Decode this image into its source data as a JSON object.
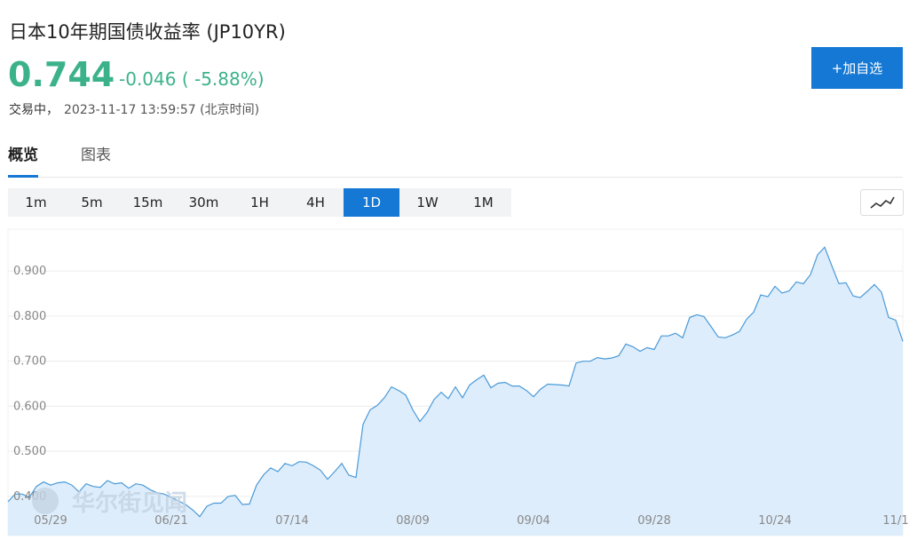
{
  "header": {
    "title": "日本10年期国债收益率  (JP10YR)",
    "price": "0.744",
    "change": "-0.046 ( -5.88%)",
    "status": "交易中，",
    "timestamp": "2023-11-17 13:59:57 (北京时间)",
    "button": "+加自选"
  },
  "tabs": {
    "items": [
      "概览",
      "图表"
    ],
    "active": 0
  },
  "timeframes": {
    "items": [
      "1m",
      "5m",
      "15m",
      "30m",
      "1H",
      "4H",
      "1D",
      "1W",
      "1M"
    ],
    "active": 6
  },
  "chart_data": {
    "type": "area",
    "watermark": "华尔街见闻",
    "color": "#4a9ad8",
    "fill": "#deedfb",
    "grid": true,
    "ylim": [
      0.313,
      0.993
    ],
    "yticks": [
      {
        "value": 0.4,
        "label": "0.400"
      },
      {
        "value": 0.5,
        "label": "0.500"
      },
      {
        "value": 0.6,
        "label": "0.600"
      },
      {
        "value": 0.7,
        "label": "0.700"
      },
      {
        "value": 0.8,
        "label": "0.800"
      },
      {
        "value": 0.9,
        "label": "0.900"
      }
    ],
    "categories": [
      null,
      null,
      null,
      null,
      null,
      null,
      "05/29",
      null,
      null,
      null,
      null,
      null,
      null,
      null,
      null,
      null,
      null,
      null,
      null,
      null,
      null,
      null,
      null,
      "06/21",
      null,
      null,
      null,
      null,
      null,
      null,
      null,
      null,
      null,
      null,
      null,
      null,
      null,
      null,
      null,
      null,
      "07/14",
      null,
      null,
      null,
      null,
      null,
      null,
      null,
      null,
      null,
      null,
      null,
      null,
      null,
      null,
      null,
      null,
      "08/09",
      null,
      null,
      null,
      null,
      null,
      null,
      null,
      null,
      null,
      null,
      null,
      null,
      null,
      null,
      null,
      null,
      "09/04",
      null,
      null,
      null,
      null,
      null,
      null,
      null,
      null,
      null,
      null,
      null,
      null,
      null,
      null,
      null,
      null,
      "09/28",
      null,
      null,
      null,
      null,
      null,
      null,
      null,
      null,
      null,
      null,
      null,
      null,
      null,
      null,
      null,
      null,
      "10/24",
      null,
      null,
      null,
      null,
      null,
      null,
      null,
      null,
      null,
      null,
      null,
      null,
      null,
      null,
      null,
      null,
      "11/1",
      null
    ],
    "values": [
      0.388,
      0.405,
      0.405,
      0.398,
      0.422,
      0.432,
      0.425,
      0.43,
      0.432,
      0.425,
      0.41,
      0.428,
      0.422,
      0.42,
      0.435,
      0.428,
      0.43,
      0.418,
      0.428,
      0.425,
      0.415,
      0.408,
      0.405,
      0.398,
      0.39,
      0.382,
      0.37,
      0.355,
      0.378,
      0.385,
      0.385,
      0.4,
      0.402,
      0.382,
      0.383,
      0.425,
      0.448,
      0.463,
      0.455,
      0.473,
      0.468,
      0.477,
      0.476,
      0.468,
      0.458,
      0.438,
      0.455,
      0.473,
      0.447,
      0.442,
      0.56,
      0.592,
      0.602,
      0.619,
      0.643,
      0.635,
      0.625,
      0.592,
      0.566,
      0.586,
      0.615,
      0.631,
      0.617,
      0.643,
      0.619,
      0.647,
      0.659,
      0.669,
      0.641,
      0.651,
      0.653,
      0.645,
      0.645,
      0.635,
      0.621,
      0.638,
      0.649,
      0.648,
      0.647,
      0.645,
      0.696,
      0.7,
      0.7,
      0.708,
      0.705,
      0.707,
      0.712,
      0.738,
      0.732,
      0.722,
      0.73,
      0.726,
      0.756,
      0.756,
      0.762,
      0.752,
      0.797,
      0.803,
      0.799,
      0.777,
      0.754,
      0.752,
      0.758,
      0.766,
      0.793,
      0.809,
      0.847,
      0.843,
      0.866,
      0.851,
      0.856,
      0.876,
      0.872,
      0.892,
      0.936,
      0.953,
      0.912,
      0.872,
      0.874,
      0.845,
      0.841,
      0.855,
      0.87,
      0.853,
      0.797,
      0.791,
      0.744
    ]
  }
}
